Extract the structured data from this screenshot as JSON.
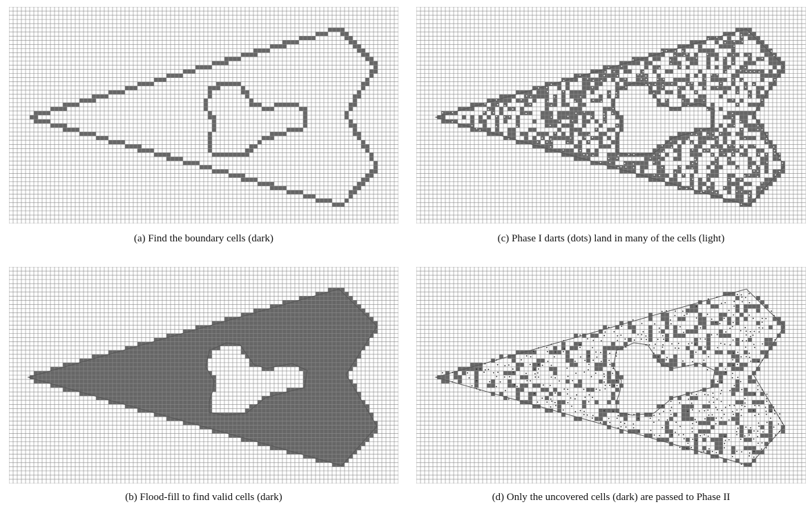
{
  "figure": {
    "panels": [
      {
        "id": "a",
        "mode": "boundary",
        "caption": "(a)  Find the boundary cells (dark)"
      },
      {
        "id": "b",
        "mode": "flood",
        "caption": "(b)  Flood-fill to find valid cells (dark)"
      },
      {
        "id": "c",
        "mode": "darts",
        "caption": "(c)  Phase I darts (dots) land in many of the cells (light)"
      },
      {
        "id": "d",
        "mode": "uncovered",
        "caption": "(d)  Only the uncovered cells (dark) are passed to Phase II"
      }
    ],
    "colors": {
      "grid_line": "#8a8a8a",
      "dark_cell": "#666666",
      "outline": "#555555",
      "dot": "#222222",
      "background": "#ffffff"
    }
  }
}
